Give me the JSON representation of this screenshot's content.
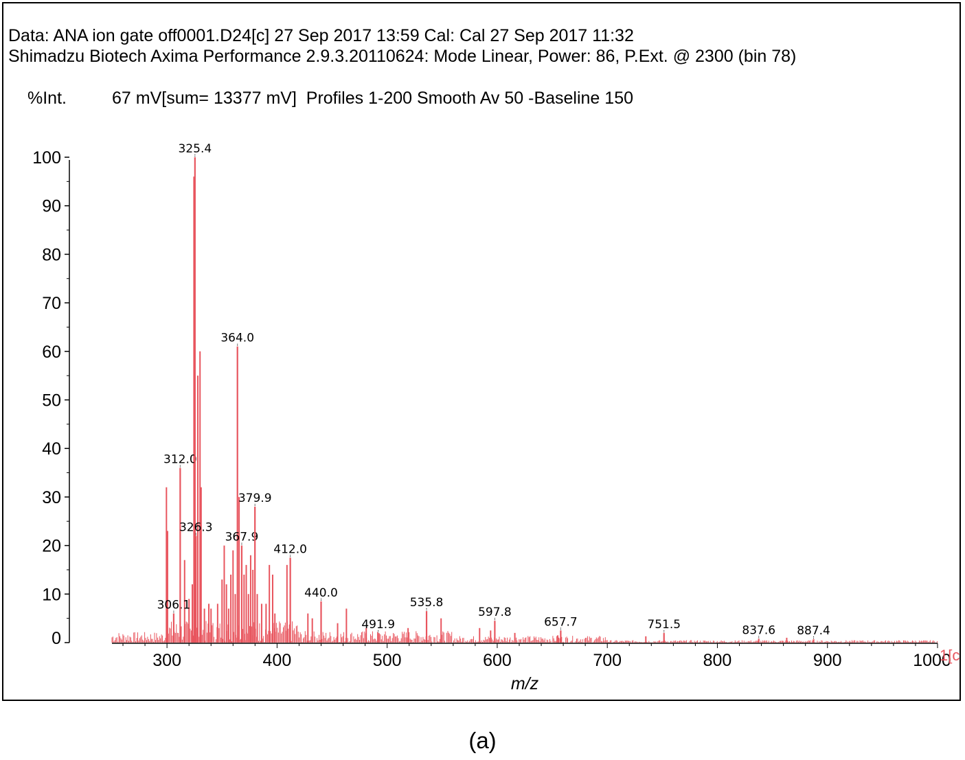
{
  "header": {
    "line1": "Data: ANA ion gate off0001.D24[c] 27 Sep 2017 13:59 Cal: Cal 27 Sep 2017 11:32",
    "line2": "Shimadzu Biotech Axima Performance 2.9.3.20110624: Mode Linear, Power: 86, P.Ext. @ 2300 (bin 78)",
    "y_unit": "%Int.",
    "scan_info": "67 mV[sum= 13377 mV]  Profiles 1-200 Smooth Av 50 -Baseline 150"
  },
  "caption": "(a)",
  "trace_label": "1[c",
  "colors": {
    "spectrum": "#e8555e",
    "axis": "#000000",
    "text": "#000000"
  },
  "chart_data": {
    "type": "line",
    "title": "",
    "xlabel": "m/z",
    "ylabel": "%Int.",
    "xlim": [
      250,
      1000
    ],
    "ylim": [
      0,
      100
    ],
    "x_ticks": [
      300,
      400,
      500,
      600,
      700,
      800,
      900,
      1000
    ],
    "y_ticks": [
      0,
      10,
      20,
      30,
      40,
      50,
      60,
      70,
      80,
      90,
      100
    ],
    "labeled_peaks": [
      {
        "mz": 306.1,
        "label": "306.1",
        "intensity": 6
      },
      {
        "mz": 312.0,
        "label": "312.0",
        "intensity": 36
      },
      {
        "mz": 325.4,
        "label": "325.4",
        "intensity": 100
      },
      {
        "mz": 326.3,
        "label": "326.3",
        "intensity": 22
      },
      {
        "mz": 364.0,
        "label": "364.0",
        "intensity": 61
      },
      {
        "mz": 367.9,
        "label": "367.9",
        "intensity": 20
      },
      {
        "mz": 379.9,
        "label": "379.9",
        "intensity": 28
      },
      {
        "mz": 412.0,
        "label": "412.0",
        "intensity": 17.5
      },
      {
        "mz": 440.0,
        "label": "440.0",
        "intensity": 8.5
      },
      {
        "mz": 491.9,
        "label": "491.9",
        "intensity": 2
      },
      {
        "mz": 535.8,
        "label": "535.8",
        "intensity": 6.5
      },
      {
        "mz": 597.8,
        "label": "597.8",
        "intensity": 4.5
      },
      {
        "mz": 657.7,
        "label": "657.7",
        "intensity": 2.5
      },
      {
        "mz": 751.5,
        "label": "751.5",
        "intensity": 2
      },
      {
        "mz": 837.6,
        "label": "837.6",
        "intensity": 0.8
      },
      {
        "mz": 887.4,
        "label": "887.4",
        "intensity": 0.7
      }
    ],
    "unlabeled_peaks": [
      {
        "mz": 299.5,
        "intensity": 32
      },
      {
        "mz": 300.5,
        "intensity": 23
      },
      {
        "mz": 316.0,
        "intensity": 17
      },
      {
        "mz": 320.0,
        "intensity": 9
      },
      {
        "mz": 323.0,
        "intensity": 12
      },
      {
        "mz": 324.5,
        "intensity": 96
      },
      {
        "mz": 328.0,
        "intensity": 55
      },
      {
        "mz": 330.0,
        "intensity": 60
      },
      {
        "mz": 331.0,
        "intensity": 32
      },
      {
        "mz": 334.0,
        "intensity": 7
      },
      {
        "mz": 338.0,
        "intensity": 8
      },
      {
        "mz": 340.0,
        "intensity": 7
      },
      {
        "mz": 346.0,
        "intensity": 8
      },
      {
        "mz": 350.0,
        "intensity": 13
      },
      {
        "mz": 352.0,
        "intensity": 20
      },
      {
        "mz": 354.0,
        "intensity": 12
      },
      {
        "mz": 356.0,
        "intensity": 7
      },
      {
        "mz": 358.0,
        "intensity": 14
      },
      {
        "mz": 360.0,
        "intensity": 19
      },
      {
        "mz": 362.0,
        "intensity": 10
      },
      {
        "mz": 365.5,
        "intensity": 30
      },
      {
        "mz": 370.0,
        "intensity": 14
      },
      {
        "mz": 372.0,
        "intensity": 16
      },
      {
        "mz": 374.0,
        "intensity": 10
      },
      {
        "mz": 376.0,
        "intensity": 18
      },
      {
        "mz": 378.0,
        "intensity": 15
      },
      {
        "mz": 382.0,
        "intensity": 10
      },
      {
        "mz": 386.0,
        "intensity": 8
      },
      {
        "mz": 390.0,
        "intensity": 8
      },
      {
        "mz": 393.0,
        "intensity": 16
      },
      {
        "mz": 396.0,
        "intensity": 14
      },
      {
        "mz": 398.0,
        "intensity": 6
      },
      {
        "mz": 409.0,
        "intensity": 16
      },
      {
        "mz": 428.0,
        "intensity": 6
      },
      {
        "mz": 432.0,
        "intensity": 5
      },
      {
        "mz": 455.0,
        "intensity": 4
      },
      {
        "mz": 463.0,
        "intensity": 7
      },
      {
        "mz": 481.0,
        "intensity": 3
      },
      {
        "mz": 519.0,
        "intensity": 3
      },
      {
        "mz": 549.0,
        "intensity": 5
      },
      {
        "mz": 584.0,
        "intensity": 3
      },
      {
        "mz": 594.0,
        "intensity": 2.5
      },
      {
        "mz": 616.0,
        "intensity": 2
      },
      {
        "mz": 655.0,
        "intensity": 1.5
      },
      {
        "mz": 735.0,
        "intensity": 1.3
      },
      {
        "mz": 863.0,
        "intensity": 1
      }
    ]
  }
}
